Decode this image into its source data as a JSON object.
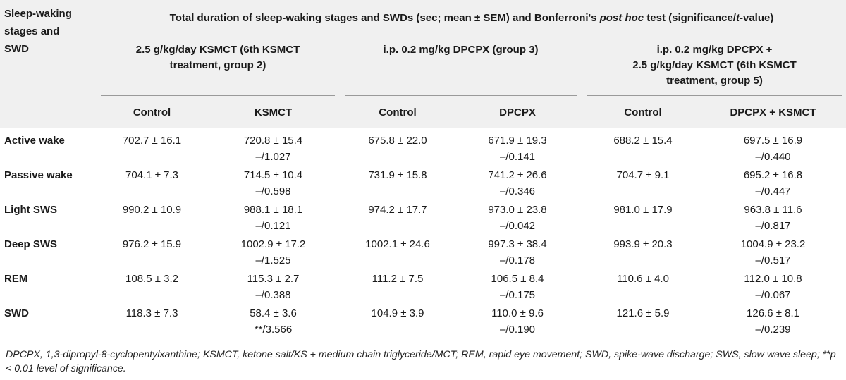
{
  "stub_header": [
    "Sleep-waking",
    "stages and",
    "SWD"
  ],
  "main_header": {
    "prefix": "Total duration of sleep-waking stages and SWDs (sec; mean ± SEM) and Bonferroni's ",
    "italic": "post hoc",
    "middle": " test (significance/",
    "italic2": "t",
    "suffix": "-value)"
  },
  "groups": [
    {
      "lines": [
        "2.5 g/kg/day KSMCT (6th KSMCT",
        "treatment, group 2)"
      ]
    },
    {
      "lines": [
        "i.p. 0.2 mg/kg DPCPX (group 3)"
      ]
    },
    {
      "lines": [
        "i.p. 0.2 mg/kg DPCPX +",
        "2.5 g/kg/day KSMCT (6th KSMCT",
        "treatment, group 5)"
      ]
    }
  ],
  "columns": [
    "Control",
    "KSMCT",
    "Control",
    "DPCPX",
    "Control",
    "DPCPX + KSMCT"
  ],
  "rows": [
    {
      "label": "Active wake",
      "cells": [
        [
          "702.7 ± 16.1",
          ""
        ],
        [
          "720.8 ± 15.4",
          "–/1.027"
        ],
        [
          "675.8 ± 22.0",
          ""
        ],
        [
          "671.9 ± 19.3",
          "–/0.141"
        ],
        [
          "688.2 ± 15.4",
          ""
        ],
        [
          "697.5 ± 16.9",
          "–/0.440"
        ]
      ]
    },
    {
      "label": "Passive wake",
      "cells": [
        [
          "704.1 ± 7.3",
          ""
        ],
        [
          "714.5 ± 10.4",
          "–/0.598"
        ],
        [
          "731.9 ± 15.8",
          ""
        ],
        [
          "741.2 ± 26.6",
          "–/0.346"
        ],
        [
          "704.7 ± 9.1",
          ""
        ],
        [
          "695.2 ± 16.8",
          "–/0.447"
        ]
      ]
    },
    {
      "label": "Light SWS",
      "cells": [
        [
          "990.2 ± 10.9",
          ""
        ],
        [
          "988.1 ± 18.1",
          "–/0.121"
        ],
        [
          "974.2 ± 17.7",
          ""
        ],
        [
          "973.0 ± 23.8",
          "–/0.042"
        ],
        [
          "981.0 ± 17.9",
          ""
        ],
        [
          "963.8 ± 11.6",
          "–/0.817"
        ]
      ]
    },
    {
      "label": "Deep SWS",
      "cells": [
        [
          "976.2 ± 15.9",
          ""
        ],
        [
          "1002.9 ± 17.2",
          "–/1.525"
        ],
        [
          "1002.1 ± 24.6",
          ""
        ],
        [
          "997.3 ± 38.4",
          "–/0.178"
        ],
        [
          "993.9 ± 20.3",
          ""
        ],
        [
          "1004.9 ± 23.2",
          "–/0.517"
        ]
      ]
    },
    {
      "label": "REM",
      "cells": [
        [
          "108.5 ± 3.2",
          ""
        ],
        [
          "115.3 ± 2.7",
          "–/0.388"
        ],
        [
          "111.2 ± 7.5",
          ""
        ],
        [
          "106.5 ± 8.4",
          "–/0.175"
        ],
        [
          "110.6 ± 4.0",
          ""
        ],
        [
          "112.0 ± 10.8",
          "–/0.067"
        ]
      ]
    },
    {
      "label": "SWD",
      "cells": [
        [
          "118.3 ± 7.3",
          ""
        ],
        [
          "58.4 ± 3.6",
          "**/3.566"
        ],
        [
          "104.9 ± 3.9",
          ""
        ],
        [
          "110.0 ± 9.6",
          "–/0.190"
        ],
        [
          "121.6 ± 5.9",
          ""
        ],
        [
          "126.6 ± 8.1",
          "–/0.239"
        ]
      ]
    }
  ],
  "footnote": "DPCPX, 1,3-dipropyl-8-cyclopentylxanthine; KSMCT, ketone salt/KS + medium chain triglyceride/MCT; REM, rapid eye movement; SWD, spike-wave discharge; SWS, slow wave sleep; **p < 0.01 level of significance."
}
